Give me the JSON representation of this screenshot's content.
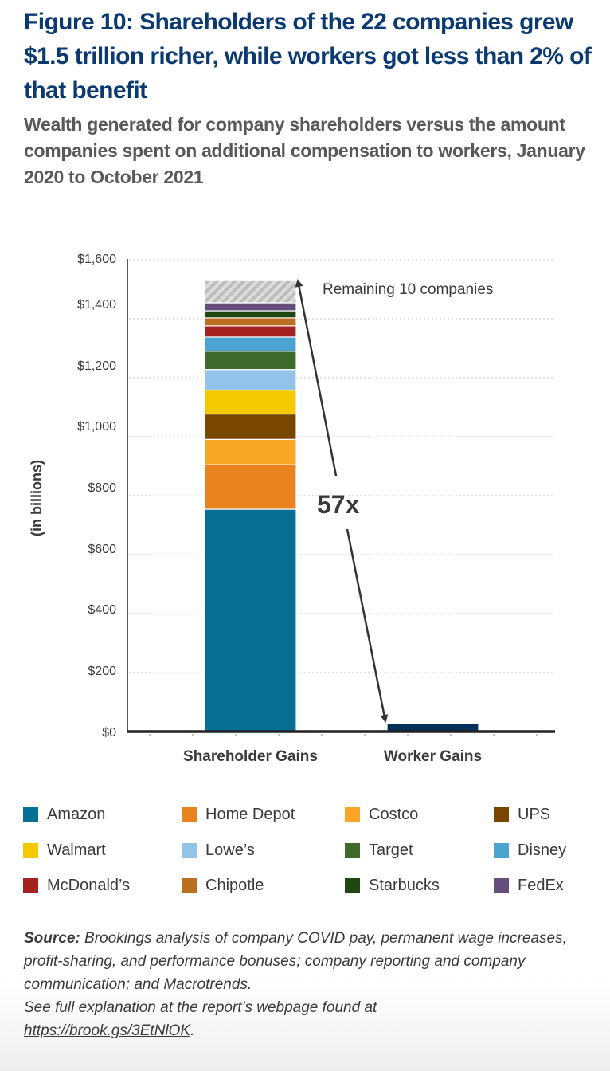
{
  "header": {
    "title": "Figure 10: Shareholders of the 22 companies grew $1.5 trillion richer, while workers got less than 2% of that benefit",
    "subtitle": "Wealth generated for company shareholders versus the amount companies spent on additional compensation to workers, January 2020 to October 2021"
  },
  "chart_data": {
    "type": "bar",
    "stacked": true,
    "title": "Figure 10: Shareholders of the 22 companies grew $1.5 trillion richer, while workers got less than 2% of that benefit",
    "xlabel": "",
    "ylabel": "(in billions)",
    "ylim": [
      0,
      1600
    ],
    "yticks": [
      0,
      200,
      400,
      600,
      800,
      1000,
      1200,
      1400,
      1600
    ],
    "ytick_labels": [
      "$0",
      "$200",
      "$400",
      "$600",
      "$800",
      "$1,000",
      "$1,200",
      "$1,400",
      "$1,600"
    ],
    "grid": true,
    "categories": [
      "Shareholder Gains",
      "Worker Gains"
    ],
    "series": [
      {
        "name": "Amazon",
        "color": "#086f94",
        "values": [
          754,
          0
        ]
      },
      {
        "name": "Home Depot",
        "color": "#e9831f",
        "values": [
          151,
          0
        ]
      },
      {
        "name": "Costco",
        "color": "#f9a526",
        "values": [
          86,
          0
        ]
      },
      {
        "name": "UPS",
        "color": "#7a4700",
        "values": [
          86,
          0
        ]
      },
      {
        "name": "Walmart",
        "color": "#f5c900",
        "values": [
          81,
          0
        ]
      },
      {
        "name": "Lowe’s",
        "color": "#92c4e9",
        "values": [
          70,
          0
        ]
      },
      {
        "name": "Target",
        "color": "#3e6b2c",
        "values": [
          62,
          0
        ]
      },
      {
        "name": "Disney",
        "color": "#4aa3d0",
        "values": [
          48,
          0
        ]
      },
      {
        "name": "McDonald’s",
        "color": "#a4221f",
        "values": [
          38,
          0
        ]
      },
      {
        "name": "Chipotle",
        "color": "#bc6f1f",
        "values": [
          27,
          0
        ]
      },
      {
        "name": "Starbucks",
        "color": "#204612",
        "values": [
          24,
          0
        ]
      },
      {
        "name": "FedEx",
        "color": "#654d7c",
        "values": [
          27,
          0
        ]
      },
      {
        "name": "Remaining 10 companies",
        "color": "#cccccc",
        "pattern": "hatched",
        "values": [
          78,
          0
        ]
      },
      {
        "name": "Worker Gains",
        "color": "#03305a",
        "values": [
          0,
          27
        ]
      }
    ],
    "annotations": [
      {
        "text": "Remaining 10 companies",
        "target": "Shareholder Gains top segment"
      },
      {
        "text": "57x",
        "description": "double-headed arrow comparing shareholder gains to worker gains"
      }
    ],
    "legend_position": "bottom",
    "legend": [
      "Amazon",
      "Home Depot",
      "Costco",
      "UPS",
      "Walmart",
      "Lowe’s",
      "Target",
      "Disney",
      "McDonald’s",
      "Chipotle",
      "Starbucks",
      "FedEx"
    ]
  },
  "source": {
    "label": "Source:",
    "text": " Brookings analysis of company COVID pay, permanent wage increases, profit-sharing, and performance bonuses; company reporting and company communication; and Macrotrends.",
    "see_full": "See full explanation at the report’s webpage found at",
    "link": "https://brook.gs/3EtNlOK",
    "link_suffix": "."
  }
}
